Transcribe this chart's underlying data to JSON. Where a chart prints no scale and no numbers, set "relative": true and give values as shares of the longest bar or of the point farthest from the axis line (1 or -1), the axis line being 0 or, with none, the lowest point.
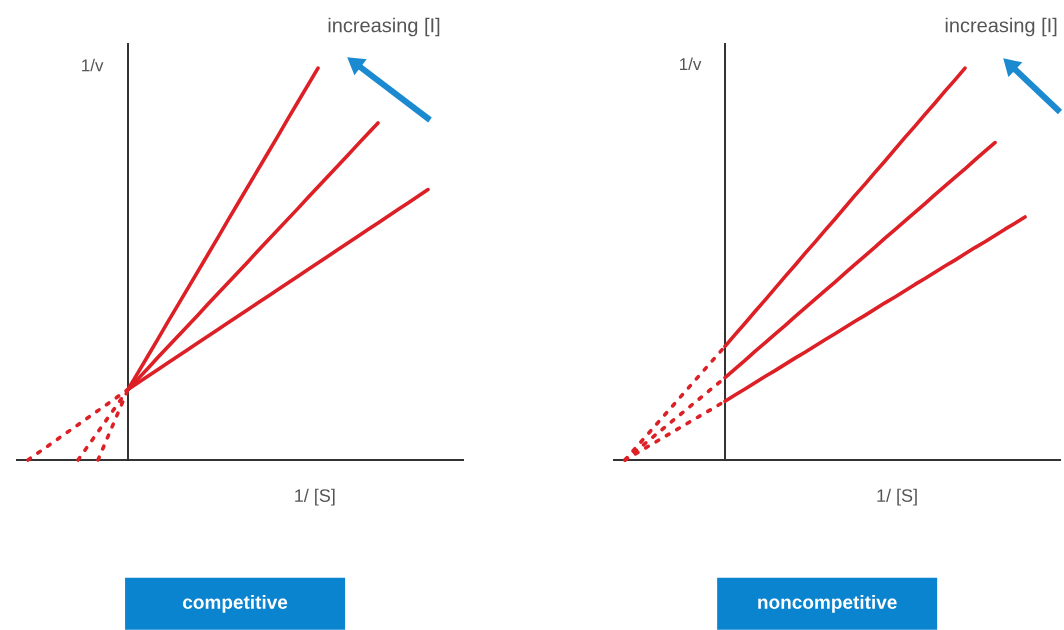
{
  "chart_data": [
    {
      "type": "line",
      "title": "competitive",
      "xlabel": "1/ [S]",
      "ylabel": "1/v",
      "annotations": [
        "increasing [I]"
      ],
      "relative": true,
      "marker": "none",
      "line_style": "solid",
      "categories": [
        null,
        null,
        null,
        null,
        null,
        null,
        null,
        null,
        null,
        null,
        null,
        null,
        null,
        null,
        null,
        null,
        null,
        null,
        null,
        null,
        null,
        null,
        null,
        null,
        null,
        null,
        null,
        null,
        null,
        null,
        null,
        null,
        null,
        null,
        null,
        null,
        null,
        null,
        null,
        null,
        null
      ],
      "series": [
        {
          "color": "#dd1f26",
          "values": [
            null,
            null,
            null,
            null,
            null,
            null,
            null,
            null,
            null,
            null,
            0.18,
            0.223,
            0.266,
            0.309,
            0.353,
            0.396,
            0.439,
            0.482,
            0.525,
            0.568,
            0.612,
            0.655,
            0.698,
            0.741,
            0.784,
            0.827,
            0.871,
            0.914,
            0.957,
            1.0,
            null,
            null,
            null,
            null,
            null,
            null,
            null,
            null,
            null,
            null,
            null
          ]
        },
        {
          "color": "#dd1f26",
          "values": [
            null,
            null,
            null,
            null,
            null,
            null,
            null,
            null,
            null,
            null,
            0.18,
            0.207,
            0.234,
            0.262,
            0.289,
            0.316,
            0.343,
            0.37,
            0.398,
            0.425,
            0.452,
            0.479,
            0.506,
            0.534,
            0.561,
            0.588,
            0.615,
            0.642,
            0.67,
            0.697,
            0.724,
            0.751,
            0.778,
            0.806,
            0.833,
            0.86,
            null,
            null,
            null,
            null,
            null
          ]
        },
        {
          "color": "#dd1f26",
          "values": [
            null,
            null,
            null,
            null,
            null,
            null,
            null,
            null,
            null,
            null,
            0.18,
            0.197,
            0.214,
            0.231,
            0.248,
            0.265,
            0.282,
            0.299,
            0.316,
            0.333,
            0.35,
            0.367,
            0.384,
            0.401,
            0.418,
            0.435,
            0.452,
            0.469,
            0.486,
            0.503,
            0.52,
            0.537,
            0.554,
            0.571,
            0.588,
            0.605,
            0.622,
            0.639,
            0.656,
            0.673,
            0.69
          ]
        },
        {
          "color": "#dd1f26",
          "line_style": "dashed",
          "values": [
            null,
            null,
            null,
            null,
            null,
            null,
            null,
            0,
            0.06,
            0.12,
            0.18,
            null,
            null,
            null,
            null,
            null,
            null,
            null,
            null,
            null,
            null,
            null,
            null,
            null,
            null,
            null,
            null,
            null,
            null,
            null,
            null,
            null,
            null,
            null,
            null,
            null,
            null,
            null,
            null,
            null,
            null
          ]
        },
        {
          "color": "#dd1f26",
          "line_style": "dashed",
          "values": [
            null,
            null,
            null,
            null,
            null,
            0,
            0.036,
            0.072,
            0.108,
            0.144,
            0.18,
            null,
            null,
            null,
            null,
            null,
            null,
            null,
            null,
            null,
            null,
            null,
            null,
            null,
            null,
            null,
            null,
            null,
            null,
            null,
            null,
            null,
            null,
            null,
            null,
            null,
            null,
            null,
            null,
            null,
            null
          ]
        },
        {
          "color": "#dd1f26",
          "line_style": "dashed",
          "values": [
            0,
            0.018,
            0.036,
            0.054,
            0.072,
            0.09,
            0.108,
            0.126,
            0.144,
            0.162,
            0.18,
            null,
            null,
            null,
            null,
            null,
            null,
            null,
            null,
            null,
            null,
            null,
            null,
            null,
            null,
            null,
            null,
            null,
            null,
            null,
            null,
            null,
            null,
            null,
            null,
            null,
            null,
            null,
            null,
            null,
            null
          ]
        }
      ]
    },
    {
      "type": "line",
      "title": "noncompetitive",
      "xlabel": "1/ [S]",
      "ylabel": "1/v",
      "annotations": [
        "increasing [I]"
      ],
      "relative": true,
      "marker": "none",
      "line_style": "solid",
      "categories": [
        null,
        null,
        null,
        null,
        null,
        null,
        null,
        null,
        null,
        null,
        null,
        null,
        null,
        null,
        null,
        null,
        null,
        null,
        null,
        null,
        null,
        null,
        null,
        null,
        null,
        null,
        null,
        null,
        null,
        null,
        null,
        null,
        null,
        null,
        null,
        null,
        null,
        null,
        null,
        null,
        null
      ],
      "series": [
        {
          "color": "#dd1f26",
          "values": [
            null,
            null,
            null,
            null,
            null,
            null,
            null,
            null,
            null,
            null,
            0.29,
            0.32,
            0.349,
            0.379,
            0.408,
            0.438,
            0.468,
            0.497,
            0.527,
            0.556,
            0.586,
            0.615,
            0.645,
            0.675,
            0.704,
            0.734,
            0.763,
            0.793,
            0.823,
            0.852,
            0.882,
            0.911,
            0.941,
            0.97,
            1.0,
            null,
            null,
            null,
            null,
            null,
            null
          ]
        },
        {
          "color": "#dd1f26",
          "values": [
            null,
            null,
            null,
            null,
            null,
            null,
            null,
            null,
            null,
            null,
            0.21,
            0.232,
            0.254,
            0.277,
            0.299,
            0.321,
            0.343,
            0.366,
            0.388,
            0.41,
            0.432,
            0.454,
            0.477,
            0.499,
            0.521,
            0.543,
            0.566,
            0.588,
            0.61,
            0.632,
            0.654,
            0.677,
            0.699,
            0.721,
            0.743,
            0.766,
            0.788,
            0.81,
            null,
            null,
            null
          ]
        },
        {
          "color": "#dd1f26",
          "values": [
            null,
            null,
            null,
            null,
            null,
            null,
            null,
            null,
            null,
            null,
            0.15,
            0.166,
            0.181,
            0.197,
            0.213,
            0.228,
            0.244,
            0.26,
            0.275,
            0.291,
            0.307,
            0.322,
            0.338,
            0.354,
            0.369,
            0.385,
            0.401,
            0.416,
            0.432,
            0.448,
            0.463,
            0.479,
            0.495,
            0.51,
            0.526,
            0.542,
            0.557,
            0.573,
            0.589,
            0.604,
            0.62
          ]
        },
        {
          "color": "#dd1f26",
          "line_style": "dashed",
          "values": [
            0,
            0.029,
            0.058,
            0.087,
            0.116,
            0.145,
            0.174,
            0.203,
            0.232,
            0.261,
            0.29,
            null,
            null,
            null,
            null,
            null,
            null,
            null,
            null,
            null,
            null,
            null,
            null,
            null,
            null,
            null,
            null,
            null,
            null,
            null,
            null,
            null,
            null,
            null,
            null,
            null,
            null,
            null,
            null,
            null,
            null
          ]
        },
        {
          "color": "#dd1f26",
          "line_style": "dashed",
          "values": [
            0,
            0.021,
            0.042,
            0.063,
            0.084,
            0.105,
            0.126,
            0.147,
            0.168,
            0.189,
            0.21,
            null,
            null,
            null,
            null,
            null,
            null,
            null,
            null,
            null,
            null,
            null,
            null,
            null,
            null,
            null,
            null,
            null,
            null,
            null,
            null,
            null,
            null,
            null,
            null,
            null,
            null,
            null,
            null,
            null,
            null
          ]
        },
        {
          "color": "#dd1f26",
          "line_style": "dashed",
          "values": [
            0,
            0.015,
            0.03,
            0.045,
            0.06,
            0.075,
            0.09,
            0.105,
            0.12,
            0.135,
            0.15,
            null,
            null,
            null,
            null,
            null,
            null,
            null,
            null,
            null,
            null,
            null,
            null,
            null,
            null,
            null,
            null,
            null,
            null,
            null,
            null,
            null,
            null,
            null,
            null,
            null,
            null,
            null,
            null,
            null,
            null
          ]
        }
      ]
    }
  ]
}
